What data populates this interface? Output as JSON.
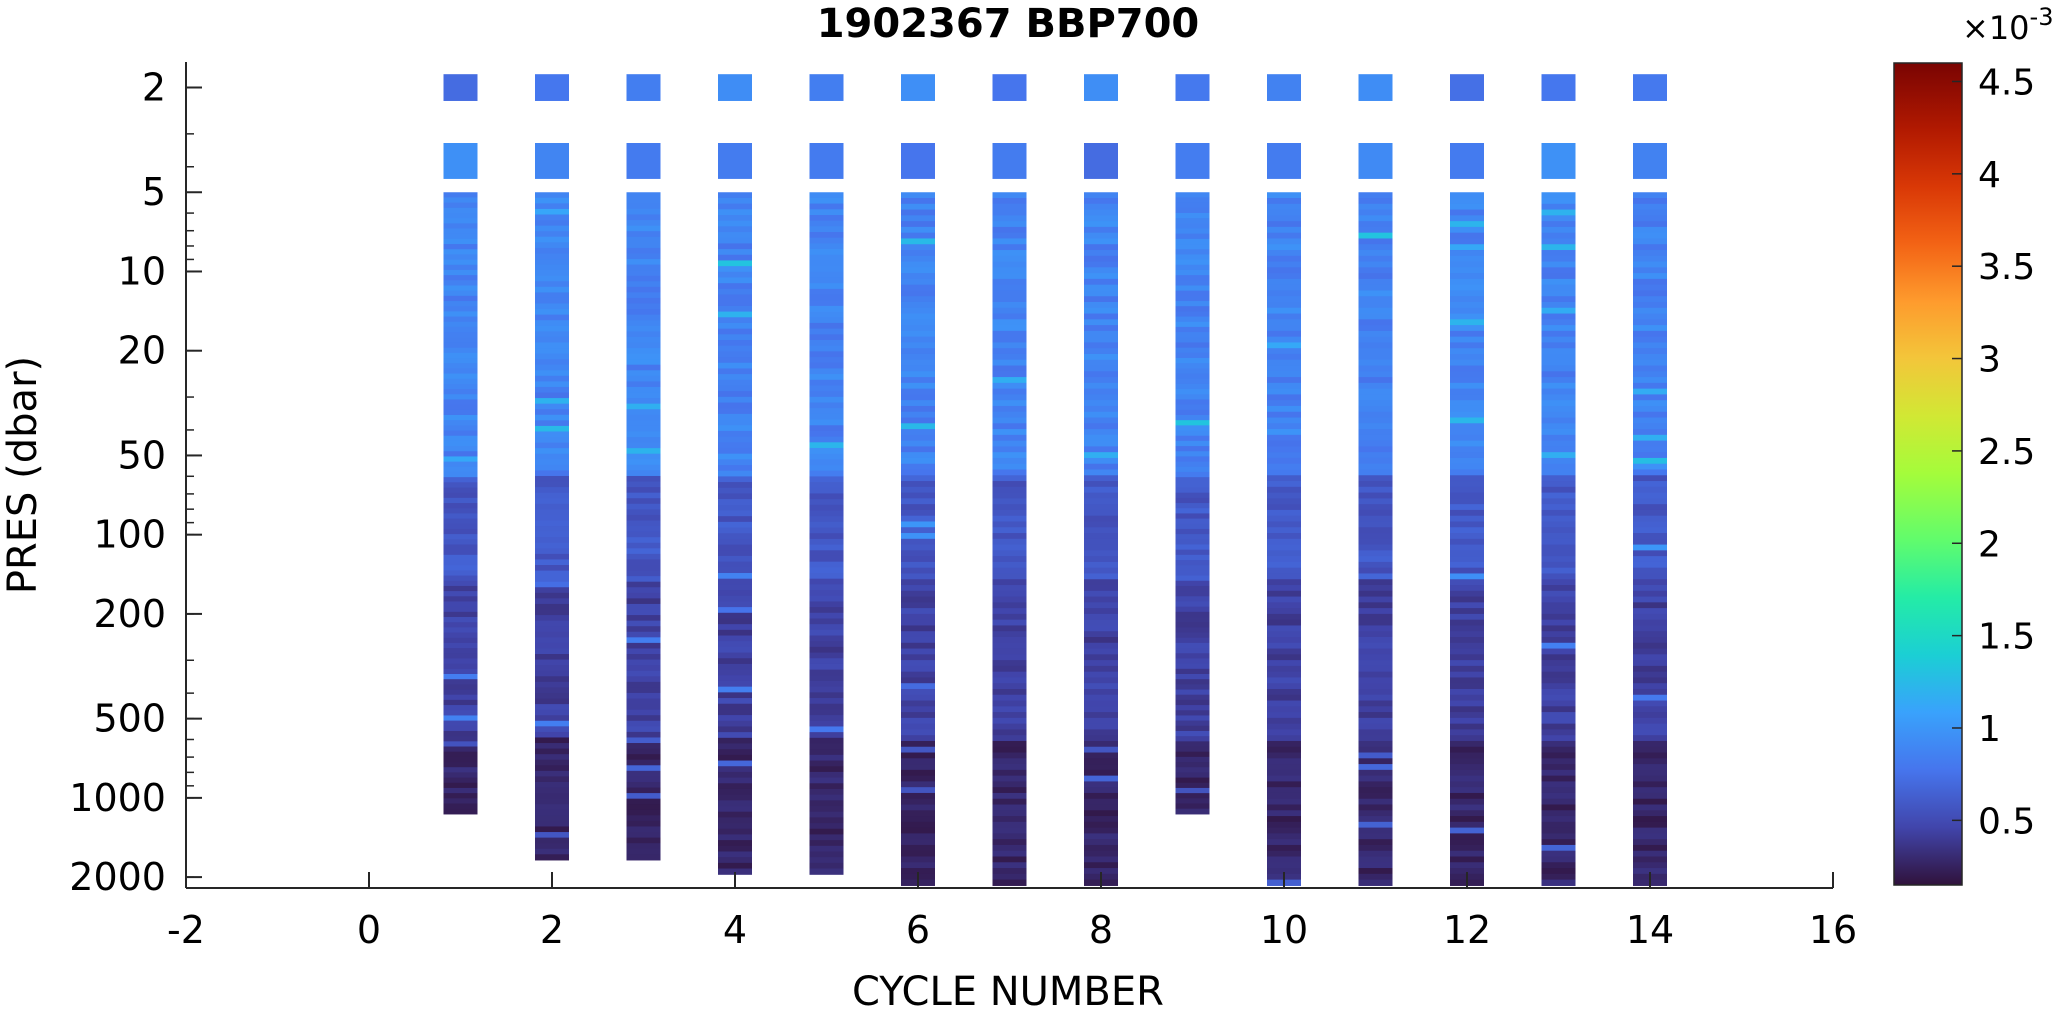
{
  "chart_data": {
    "type": "heatmap",
    "title": "1902367 BBP700",
    "xlabel": "CYCLE NUMBER",
    "ylabel": "PRES (dbar)",
    "xlim": [
      -2,
      16
    ],
    "ylim": [
      1.6,
      2200
    ],
    "y_scale": "log",
    "y_reversed": true,
    "x_ticks": [
      "-2",
      "0",
      "2",
      "4",
      "6",
      "8",
      "10",
      "12",
      "14",
      "16"
    ],
    "y_ticks": [
      "2",
      "5",
      "10",
      "20",
      "50",
      "100",
      "200",
      "500",
      "1000",
      "2000"
    ],
    "colorbar": {
      "colormap": "turbo",
      "min": 0.00015,
      "max": 0.0046,
      "exponent_label": "×10",
      "exponent": "-3",
      "ticks": [
        "0.5",
        "1",
        "1.5",
        "2",
        "2.5",
        "3",
        "3.5",
        "4",
        "4.5"
      ]
    },
    "profiles": [
      {
        "cycle": 1,
        "max_pres": 1150
      },
      {
        "cycle": 2,
        "max_pres": 1720
      },
      {
        "cycle": 3,
        "max_pres": 1720
      },
      {
        "cycle": 4,
        "max_pres": 1950
      },
      {
        "cycle": 5,
        "max_pres": 1950
      },
      {
        "cycle": 6,
        "max_pres": 2150
      },
      {
        "cycle": 7,
        "max_pres": 2150
      },
      {
        "cycle": 8,
        "max_pres": 2150
      },
      {
        "cycle": 9,
        "max_pres": 1150
      },
      {
        "cycle": 10,
        "max_pres": 2150
      },
      {
        "cycle": 11,
        "max_pres": 2150
      },
      {
        "cycle": 12,
        "max_pres": 2150
      },
      {
        "cycle": 13,
        "max_pres": 2150
      },
      {
        "cycle": 14,
        "max_pres": 2150
      }
    ],
    "grid": false
  }
}
